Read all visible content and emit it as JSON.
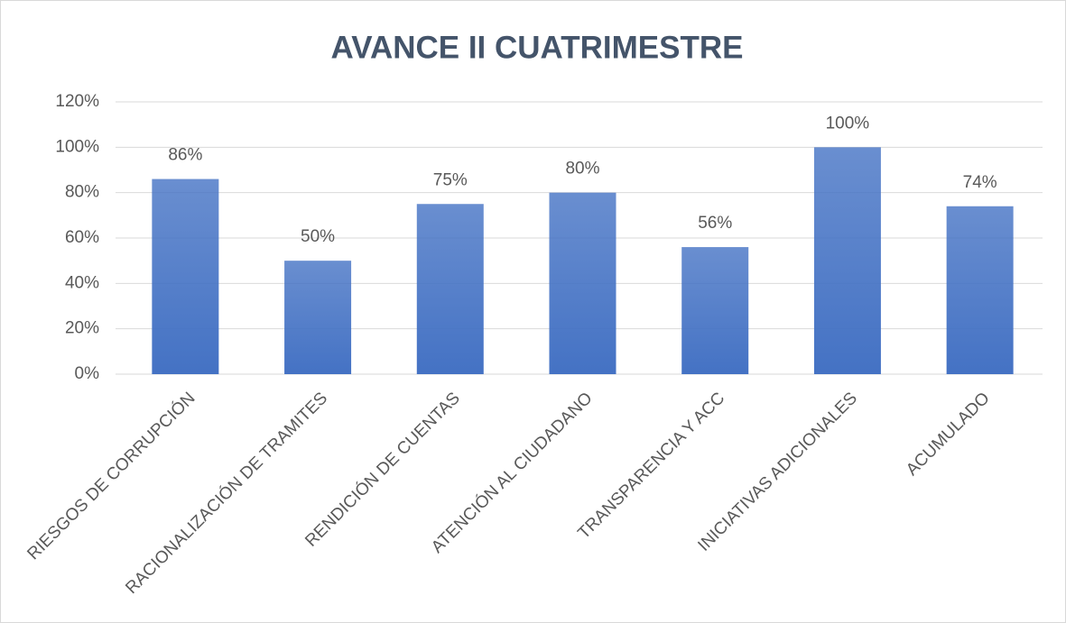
{
  "chart_data": {
    "type": "bar",
    "title": "AVANCE II CUATRIMESTRE",
    "categories": [
      "RIESGOS DE CORRUPCIÓN",
      "RACIONALIZACIÓN DE TRAMITES",
      "RENDICIÓN DE CUENTAS",
      "ATENCIÓN AL CIUDADANO",
      "TRANSPARENCIA Y ACC",
      "INICIATIVAS ADICIONALES",
      "ACUMULADO"
    ],
    "values": [
      86,
      50,
      75,
      80,
      56,
      100,
      74
    ],
    "value_labels": [
      "86%",
      "50%",
      "75%",
      "80%",
      "56%",
      "100%",
      "74%"
    ],
    "color": "#4472c4",
    "ylim": [
      0,
      120
    ],
    "yticks": [
      {
        "value": 0,
        "label": "0%"
      },
      {
        "value": 20,
        "label": "20%"
      },
      {
        "value": 40,
        "label": "40%"
      },
      {
        "value": 60,
        "label": "60%"
      },
      {
        "value": 80,
        "label": "80%"
      },
      {
        "value": 100,
        "label": "100%"
      },
      {
        "value": 120,
        "label": "120%"
      }
    ],
    "grid": true
  }
}
